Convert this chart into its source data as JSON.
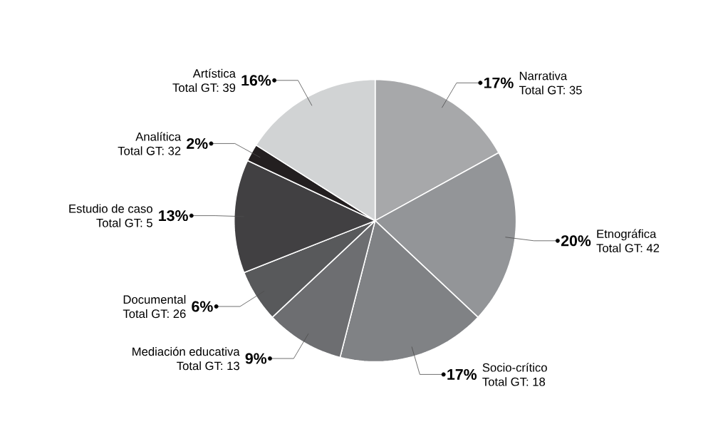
{
  "chart_data": {
    "type": "pie",
    "categories": [
      "Narrativa",
      "Etnográfica",
      "Socio-crítico",
      "Mediación educativa",
      "Documental",
      "Estudio de caso",
      "Analítica",
      "Artística"
    ],
    "values": [
      17,
      20,
      17,
      9,
      6,
      13,
      2,
      16
    ],
    "value_labels": [
      "17%",
      "20%",
      "17%",
      "9%",
      "6%",
      "13%",
      "2%",
      "16%"
    ],
    "colors": [
      "#a7a8aa",
      "#939598",
      "#808285",
      "#6d6e71",
      "#58595b",
      "#414042",
      "#231f20",
      "#d1d3d4"
    ],
    "annotations": [
      "Total GT: 35",
      "Total GT: 42",
      "Total GT: 18",
      "Total GT: 13",
      "Total GT: 26",
      "Total GT: 5",
      "Total GT: 32",
      "Total GT: 39"
    ]
  }
}
